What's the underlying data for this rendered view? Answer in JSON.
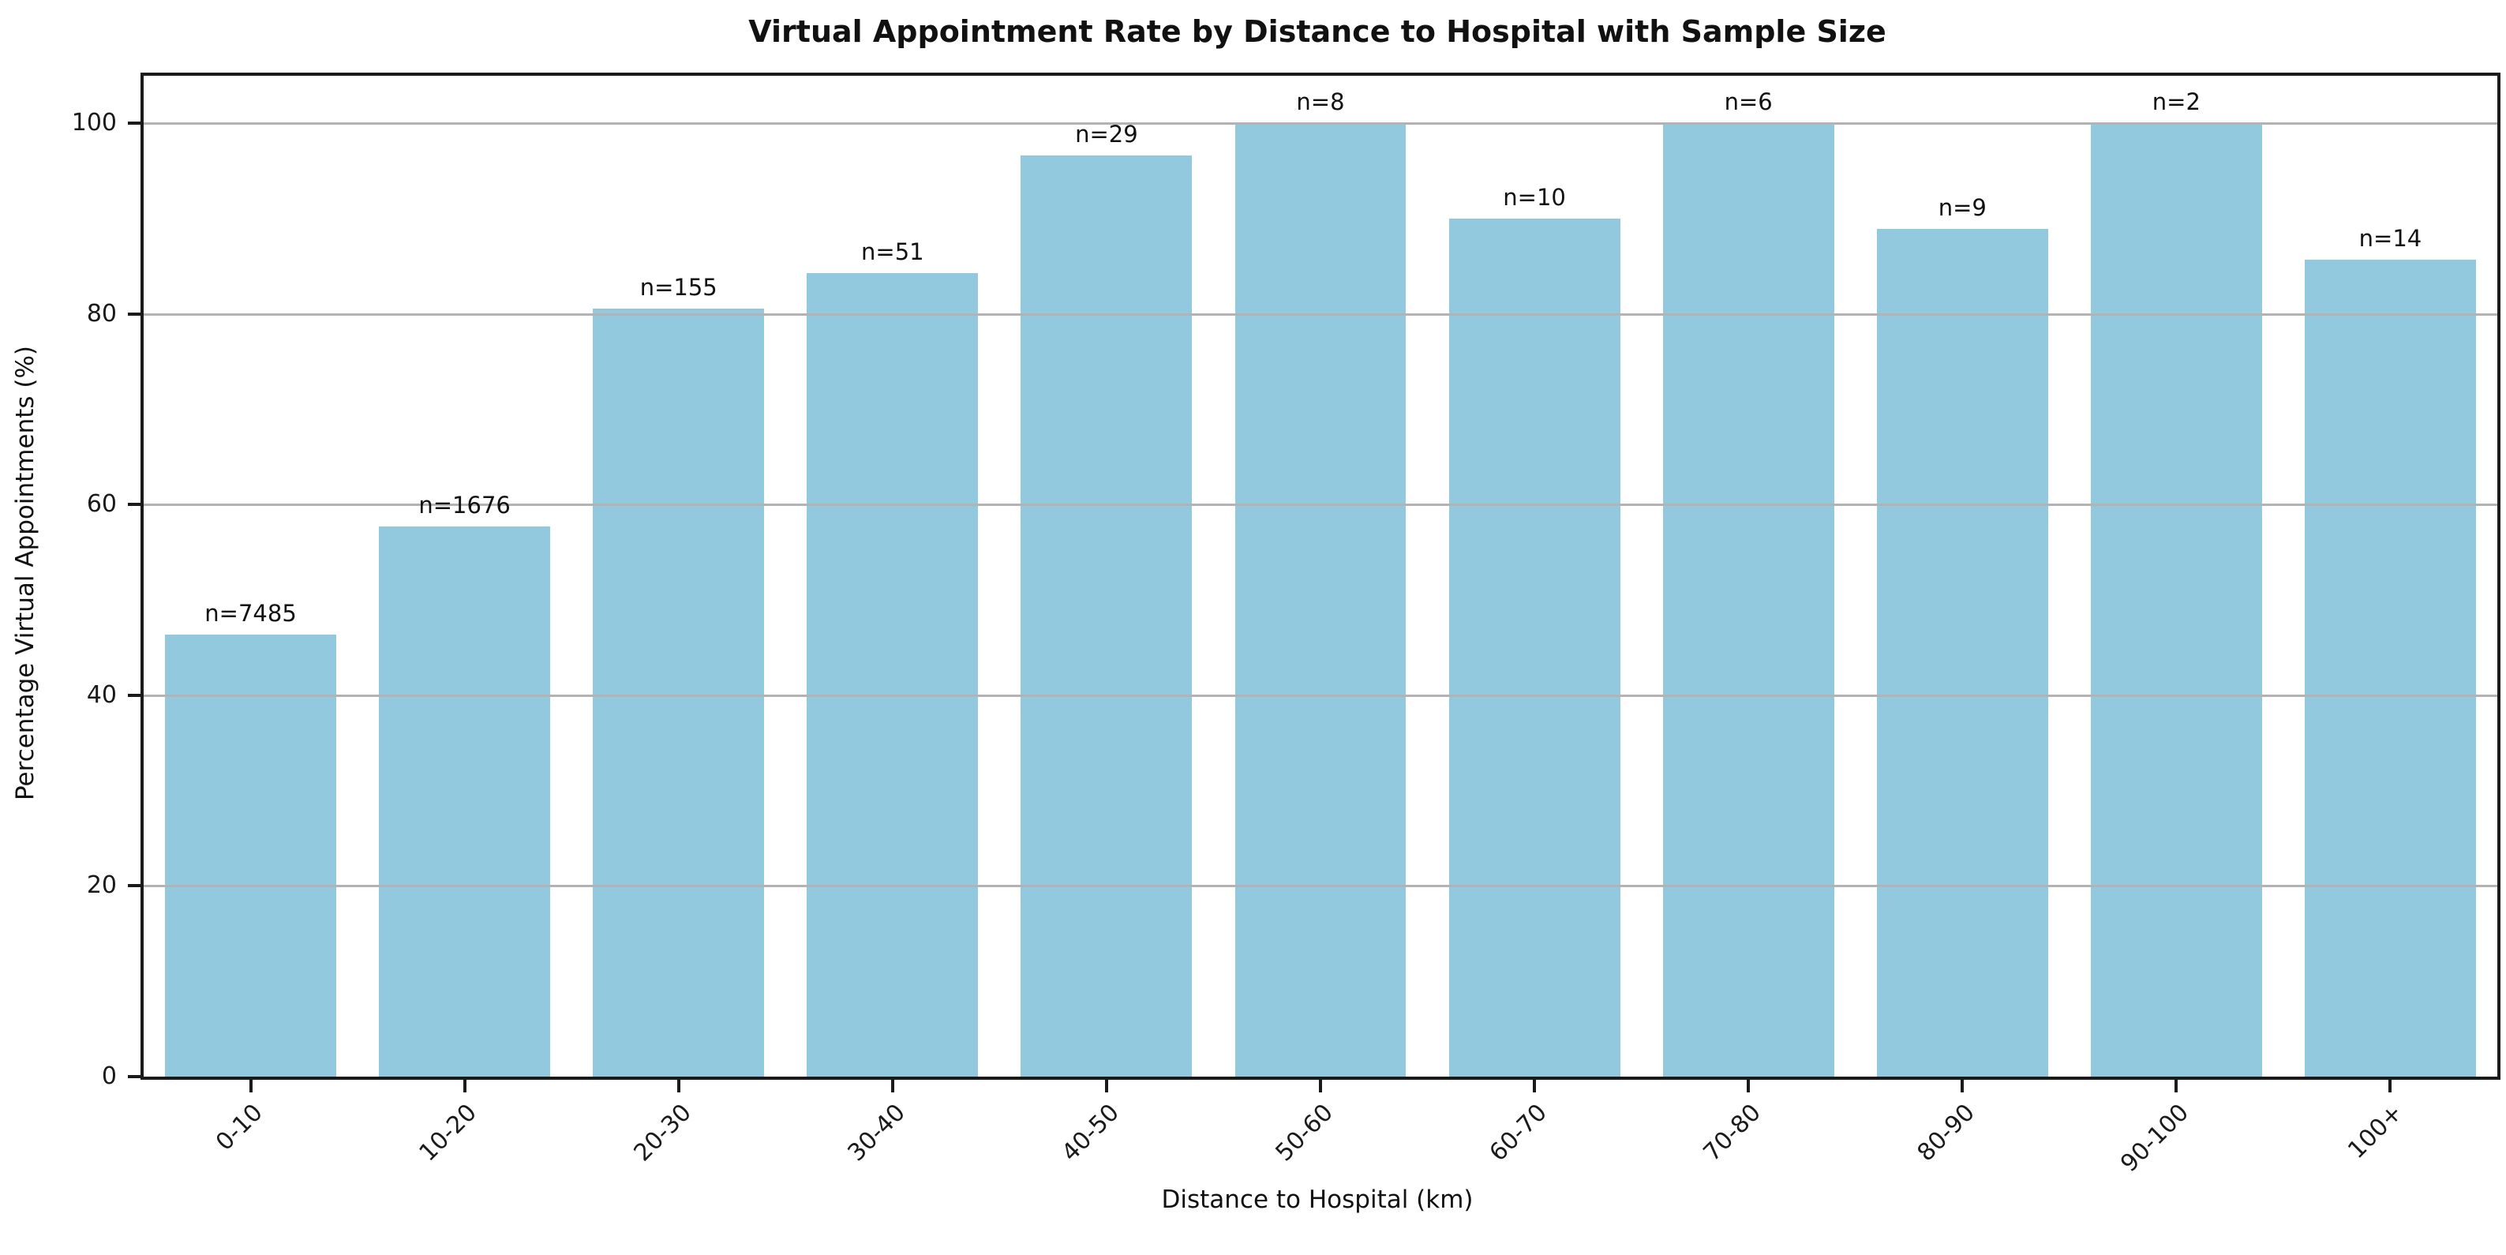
{
  "chart_data": {
    "type": "bar",
    "title": "Virtual Appointment Rate by Distance to Hospital with Sample Size",
    "xlabel": "Distance to Hospital (km)",
    "ylabel": "Percentage Virtual Appointments (%)",
    "categories": [
      "0-10",
      "10-20",
      "20-30",
      "30-40",
      "40-50",
      "50-60",
      "60-70",
      "70-80",
      "80-90",
      "90-100",
      "100+"
    ],
    "values": [
      46.4,
      57.7,
      80.6,
      84.3,
      96.6,
      100,
      90,
      100,
      88.9,
      100,
      85.7
    ],
    "bar_labels": [
      "n=7485",
      "n=1676",
      "n=155",
      "n=51",
      "n=29",
      "n=8",
      "n=10",
      "n=6",
      "n=9",
      "n=2",
      "n=14"
    ],
    "sample_sizes": [
      7485,
      1676,
      155,
      51,
      29,
      8,
      10,
      6,
      9,
      2,
      14
    ],
    "yticks": [
      0,
      20,
      40,
      60,
      80,
      100
    ],
    "ylim": [
      0,
      105
    ],
    "bar_width_fraction": 0.8,
    "grid": "horizontal gridlines at y ticks, drawn above bars",
    "legend": "none",
    "colors": {
      "bar_fill": "#92c9de",
      "gridline": "#b3b3b3",
      "axis_spine": "#1a1a1a",
      "text": "#111111"
    }
  }
}
